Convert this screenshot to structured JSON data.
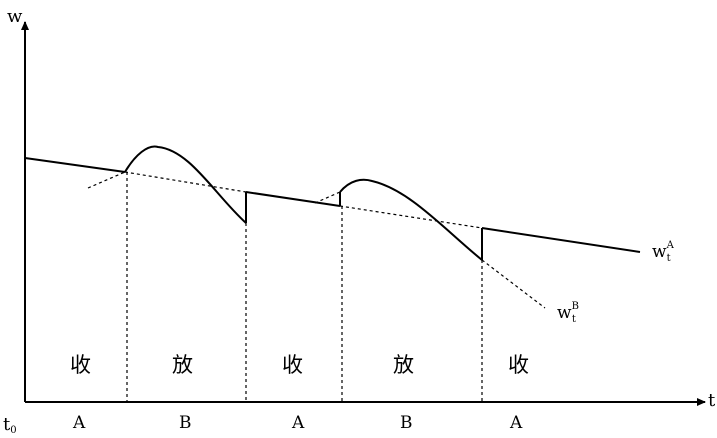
{
  "axes": {
    "y_label": "w",
    "x_label": "t",
    "origin_label": "t",
    "origin_sub": "0"
  },
  "curves": {
    "curve_a": {
      "base": "w",
      "sub": "t",
      "sup": "A"
    },
    "curve_b": {
      "base": "w",
      "sub": "t",
      "sup": "B"
    }
  },
  "regions": [
    {
      "top": "收",
      "bottom": "A"
    },
    {
      "top": "放",
      "bottom": "B"
    },
    {
      "top": "收",
      "bottom": "A"
    },
    {
      "top": "放",
      "bottom": "B"
    },
    {
      "top": "收",
      "bottom": "A"
    }
  ]
}
